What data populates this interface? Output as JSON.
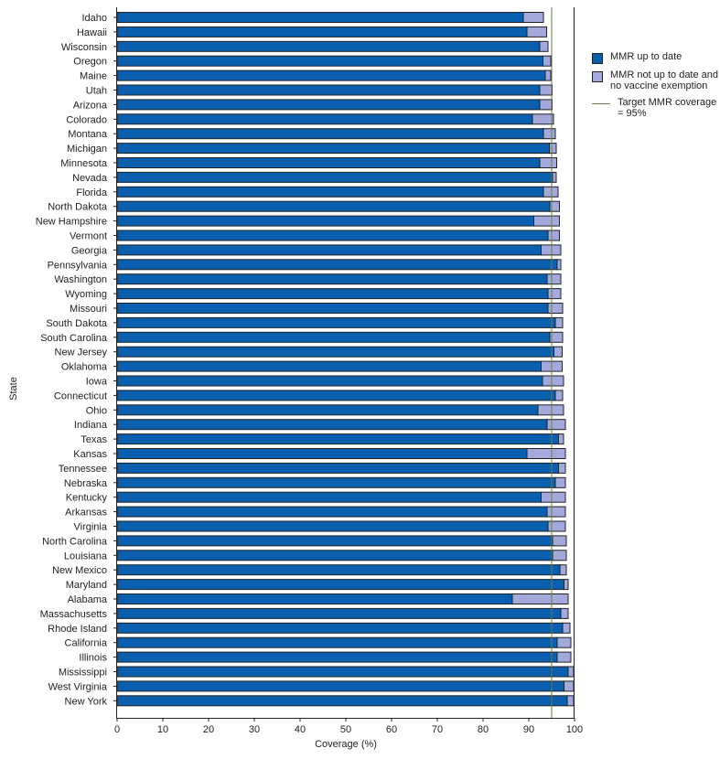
{
  "chart_data": {
    "type": "bar",
    "orientation": "horizontal",
    "stacked": true,
    "xlabel": "Coverage (%)",
    "ylabel": "State",
    "xlim": [
      0,
      100
    ],
    "xticks": [
      0,
      10,
      20,
      30,
      40,
      50,
      60,
      70,
      80,
      90,
      100
    ],
    "target": {
      "label": "Target MMR coverage = 95%",
      "value": 95,
      "color": "#6b7a4a"
    },
    "categories": [
      "Idaho",
      "Hawaii",
      "Wisconsin",
      "Oregon",
      "Maine",
      "Utah",
      "Arizona",
      "Colorado",
      "Montana",
      "Michigan",
      "Minnesota",
      "Nevada",
      "Florida",
      "North Dakota",
      "New Hampshire",
      "Vermont",
      "Georgia",
      "Pennsylvania",
      "Washington",
      "Wyoming",
      "Missouri",
      "South Dakota",
      "South Carolina",
      "New Jersey",
      "Oklahoma",
      "Iowa",
      "Connecticut",
      "Ohio",
      "Indiana",
      "Texas",
      "Kansas",
      "Tennessee",
      "Nebraska",
      "Kentucky",
      "Arkansas",
      "Virginia",
      "North Carolina",
      "Louisiana",
      "New Mexico",
      "Maryland",
      "Alabama",
      "Massachusetts",
      "Rhode Island",
      "California",
      "Illinois",
      "Mississippi",
      "West Virginia",
      "New York"
    ],
    "series": [
      {
        "name": "MMR up to date",
        "color": "#0a5fae",
        "values": [
          88.8,
          89.6,
          92.4,
          93.1,
          93.6,
          92.4,
          92.4,
          90.8,
          93.2,
          94.5,
          92.4,
          95.2,
          93.2,
          94.6,
          91.1,
          94.2,
          92.7,
          96.2,
          94.0,
          94.2,
          94.2,
          95.8,
          94.6,
          95.5,
          92.7,
          93.0,
          95.8,
          92.0,
          94.0,
          96.5,
          89.6,
          96.5,
          95.8,
          92.7,
          94.0,
          94.2,
          95.2,
          95.2,
          96.8,
          97.7,
          86.4,
          97.0,
          97.4,
          96.2,
          96.2,
          98.6,
          97.7,
          98.4
        ]
      },
      {
        "name": "MMR not up to date and no vaccine exemption",
        "color": "#a4a9dc",
        "values": [
          4.4,
          4.3,
          1.8,
          1.7,
          1.2,
          2.7,
          2.7,
          4.6,
          2.6,
          1.5,
          3.7,
          0.8,
          3.2,
          2.1,
          5.6,
          2.5,
          4.3,
          0.8,
          3.0,
          2.8,
          3.2,
          1.6,
          2.8,
          1.8,
          4.6,
          4.6,
          1.6,
          5.6,
          4.0,
          1.1,
          8.4,
          1.5,
          2.2,
          5.3,
          4.0,
          3.8,
          3.0,
          3.0,
          1.4,
          0.9,
          12.2,
          1.6,
          1.6,
          3.0,
          3.0,
          1.2,
          2.1,
          1.4
        ]
      }
    ],
    "legend": "right",
    "grid": false
  }
}
